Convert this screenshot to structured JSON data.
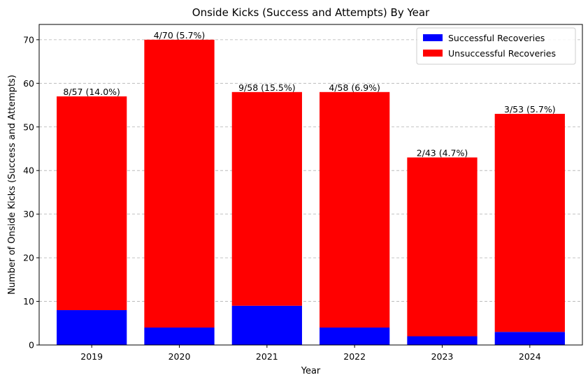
{
  "chart_data": {
    "type": "bar",
    "stacked": true,
    "title": "Onside Kicks (Success and Attempts) By Year",
    "xlabel": "Year",
    "ylabel": "Number of Onside Kicks (Success and Attempts)",
    "categories": [
      "2019",
      "2020",
      "2021",
      "2022",
      "2023",
      "2024"
    ],
    "series": [
      {
        "name": "Successful Recoveries",
        "color": "#0000ff",
        "values": [
          8,
          4,
          9,
          4,
          2,
          3
        ]
      },
      {
        "name": "Unsuccessful Recoveries",
        "color": "#ff0000",
        "values": [
          49,
          66,
          49,
          54,
          41,
          50
        ]
      }
    ],
    "totals": [
      57,
      70,
      58,
      58,
      43,
      53
    ],
    "data_labels": [
      "8/57 (14.0%)",
      "4/70 (5.7%)",
      "9/58 (15.5%)",
      "4/58 (6.9%)",
      "2/43 (4.7%)",
      "3/53 (5.7%)"
    ],
    "ylim": [
      0,
      73.5
    ],
    "yticks": [
      0,
      10,
      20,
      30,
      40,
      50,
      60,
      70
    ],
    "grid": "y-dashed",
    "legend_position": "top-right"
  }
}
